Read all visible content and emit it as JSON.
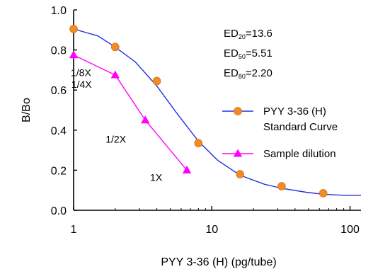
{
  "chart_data": {
    "type": "line",
    "x_scale": "log",
    "xlabel": "PYY 3-36 (H) (pg/tube)",
    "ylabel": "B/Bo",
    "xlim": [
      1,
      120
    ],
    "ylim": [
      0,
      1.0
    ],
    "x_ticks": [
      1,
      10,
      100
    ],
    "x_tick_labels": [
      "1",
      "10",
      "100"
    ],
    "y_ticks": [
      0,
      0.2,
      0.4,
      0.6,
      0.8,
      1.0
    ],
    "y_tick_labels": [
      "0.0",
      "0.2",
      "0.4",
      "0.6",
      "0.8",
      "1.0"
    ],
    "grid": false,
    "legend_position": "right",
    "annotations": [
      {
        "base": "ED",
        "sub": "20",
        "value": "=13.6"
      },
      {
        "base": "ED",
        "sub": "50",
        "value": "=5.51"
      },
      {
        "base": "ED",
        "sub": "80",
        "value": "=2.20"
      }
    ],
    "series": [
      {
        "legend_lines": [
          "PYY 3-36 (H)",
          "Standard Curve"
        ],
        "color": "#2233dd",
        "marker": "circle",
        "marker_color": "#f28a25",
        "points": [
          {
            "x": 1,
            "y": 0.905
          },
          {
            "x": 2,
            "y": 0.815
          },
          {
            "x": 4,
            "y": 0.645
          },
          {
            "x": 8,
            "y": 0.335
          },
          {
            "x": 16,
            "y": 0.18
          },
          {
            "x": 32,
            "y": 0.12
          },
          {
            "x": 64,
            "y": 0.085
          }
        ],
        "curve": [
          {
            "x": 1,
            "y": 0.905
          },
          {
            "x": 1.5,
            "y": 0.87
          },
          {
            "x": 2,
            "y": 0.815
          },
          {
            "x": 2.8,
            "y": 0.74
          },
          {
            "x": 4,
            "y": 0.62
          },
          {
            "x": 5.5,
            "y": 0.49
          },
          {
            "x": 8,
            "y": 0.345
          },
          {
            "x": 11,
            "y": 0.25
          },
          {
            "x": 16,
            "y": 0.175
          },
          {
            "x": 24,
            "y": 0.13
          },
          {
            "x": 32,
            "y": 0.11
          },
          {
            "x": 48,
            "y": 0.09
          },
          {
            "x": 64,
            "y": 0.08
          },
          {
            "x": 90,
            "y": 0.075
          },
          {
            "x": 120,
            "y": 0.075
          }
        ]
      },
      {
        "legend_lines": [
          "Sample dilution"
        ],
        "color": "#ff00ff",
        "marker": "triangle",
        "marker_color": "#ff00ff",
        "points": [
          {
            "x": 1,
            "y": 0.775,
            "label": "1/8X"
          },
          {
            "x": 2,
            "y": 0.675,
            "label": "1/4X"
          },
          {
            "x": 3.3,
            "y": 0.45,
            "label": "1/2X"
          },
          {
            "x": 6.6,
            "y": 0.2,
            "label": "1X"
          }
        ]
      }
    ]
  }
}
